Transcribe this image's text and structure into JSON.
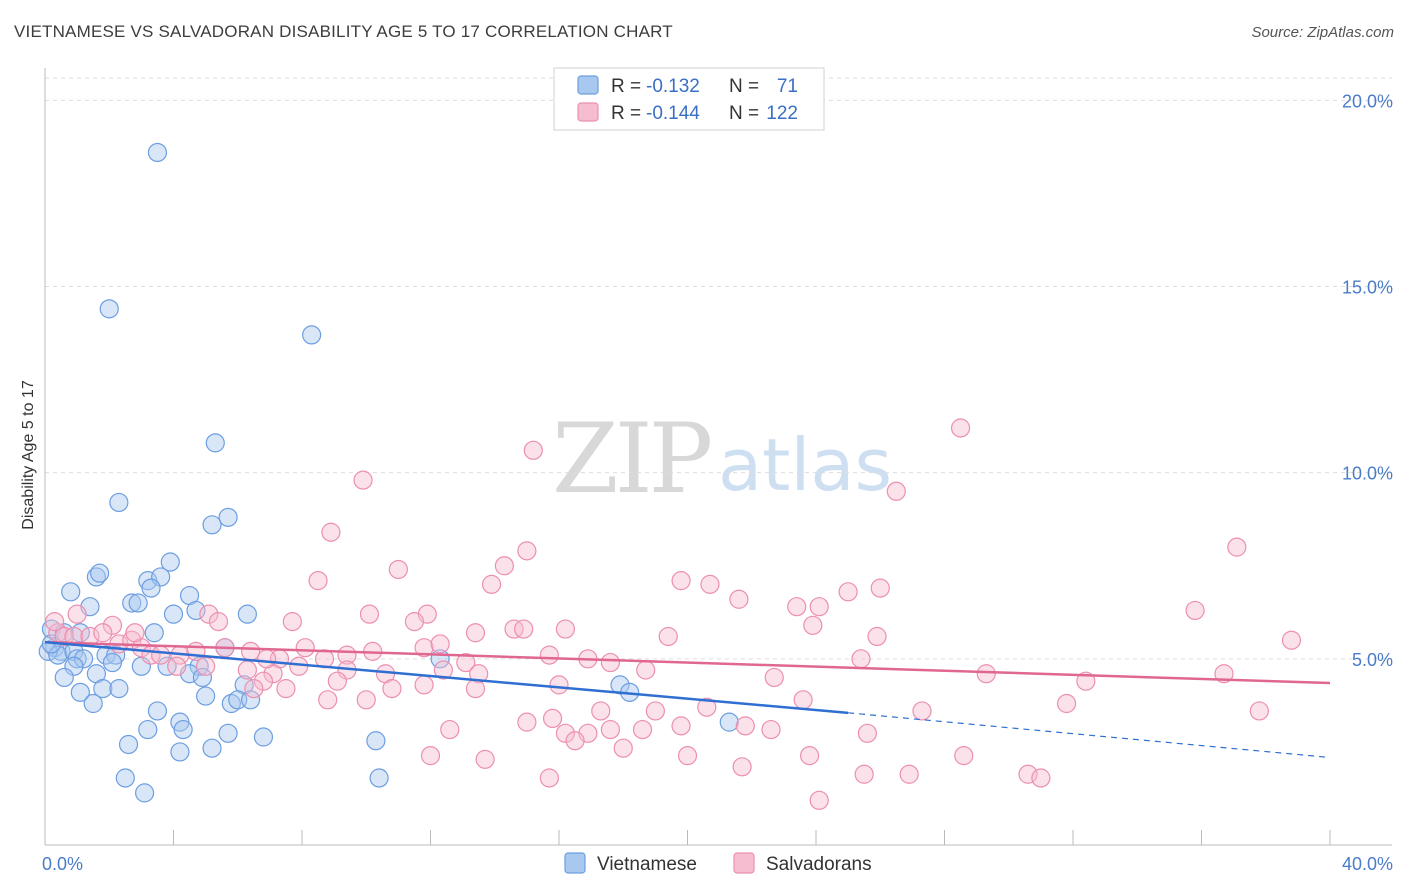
{
  "title": "VIETNAMESE VS SALVADORAN DISABILITY AGE 5 TO 17 CORRELATION CHART",
  "source": "Source: ZipAtlas.com",
  "watermark": {
    "zip": "ZIP",
    "atlas": "atlas"
  },
  "legend": {
    "rows": [
      {
        "r_label": "R =",
        "r_value": "-0.132",
        "n_label": "N =",
        "n_value": "71",
        "color": "#a9c8ef",
        "stroke": "#6c9ee0"
      },
      {
        "r_label": "R =",
        "r_value": "-0.144",
        "n_label": "N =",
        "n_value": "122",
        "color": "#f6bdd0",
        "stroke": "#ec8fb0"
      }
    ]
  },
  "colors": {
    "blue_fill": "#a9c8ef",
    "blue_stroke": "#6c9ee0",
    "blue_line": "#2f6fd1",
    "pink_fill": "#f6bdd0",
    "pink_stroke": "#ec8fb0",
    "pink_line": "#e06791",
    "grid": "#dddddd",
    "tick": "#4a7cc9"
  },
  "chart_data": {
    "type": "scatter",
    "title": "VIETNAMESE VS SALVADORAN DISABILITY AGE 5 TO 17 CORRELATION CHART",
    "xlabel": "",
    "ylabel": "Disability Age 5 to 17",
    "xlim": [
      0,
      40
    ],
    "ylim": [
      0,
      20.6
    ],
    "x_tick_labels": [
      "0.0%",
      "40.0%"
    ],
    "y_ticks": [
      5,
      10,
      15,
      20
    ],
    "y_tick_labels": [
      "5.0%",
      "10.0%",
      "15.0%",
      "20.0%"
    ],
    "series": [
      {
        "name": "Vietnamese",
        "r": -0.132,
        "n": 71,
        "trend": {
          "x0": 0,
          "y0": 5.45,
          "x1": 25.0,
          "y1": 3.55,
          "dash_x1": 40.0,
          "dash_y1": 2.35
        },
        "points": [
          [
            3.5,
            18.6
          ],
          [
            2.0,
            14.4
          ],
          [
            8.3,
            13.7
          ],
          [
            5.3,
            10.8
          ],
          [
            2.3,
            9.2
          ],
          [
            5.7,
            8.8
          ],
          [
            5.2,
            8.6
          ],
          [
            3.9,
            7.6
          ],
          [
            1.6,
            7.2
          ],
          [
            3.2,
            7.1
          ],
          [
            3.6,
            7.2
          ],
          [
            0.8,
            6.8
          ],
          [
            1.7,
            7.3
          ],
          [
            3.3,
            6.9
          ],
          [
            4.5,
            6.7
          ],
          [
            2.7,
            6.5
          ],
          [
            2.9,
            6.5
          ],
          [
            1.4,
            6.4
          ],
          [
            4.0,
            6.2
          ],
          [
            4.7,
            6.3
          ],
          [
            6.3,
            6.2
          ],
          [
            0.2,
            5.8
          ],
          [
            0.6,
            5.7
          ],
          [
            1.1,
            5.7
          ],
          [
            0.3,
            5.3
          ],
          [
            0.5,
            5.2
          ],
          [
            3.4,
            5.7
          ],
          [
            5.6,
            5.3
          ],
          [
            0.1,
            5.2
          ],
          [
            0.4,
            5.1
          ],
          [
            0.9,
            5.2
          ],
          [
            1.0,
            5.0
          ],
          [
            1.2,
            5.0
          ],
          [
            1.9,
            5.1
          ],
          [
            2.2,
            5.1
          ],
          [
            2.1,
            4.9
          ],
          [
            0.9,
            4.8
          ],
          [
            3.0,
            4.8
          ],
          [
            3.8,
            4.8
          ],
          [
            4.8,
            4.8
          ],
          [
            1.6,
            4.6
          ],
          [
            0.6,
            4.5
          ],
          [
            4.5,
            4.6
          ],
          [
            4.9,
            4.5
          ],
          [
            1.8,
            4.2
          ],
          [
            2.3,
            4.2
          ],
          [
            6.2,
            4.3
          ],
          [
            1.1,
            4.1
          ],
          [
            5.0,
            4.0
          ],
          [
            1.5,
            3.8
          ],
          [
            5.8,
            3.8
          ],
          [
            6.0,
            3.9
          ],
          [
            6.4,
            3.9
          ],
          [
            3.5,
            3.6
          ],
          [
            4.2,
            3.3
          ],
          [
            4.3,
            3.1
          ],
          [
            3.2,
            3.1
          ],
          [
            5.7,
            3.0
          ],
          [
            6.8,
            2.9
          ],
          [
            2.6,
            2.7
          ],
          [
            5.2,
            2.6
          ],
          [
            4.2,
            2.5
          ],
          [
            10.3,
            2.8
          ],
          [
            2.5,
            1.8
          ],
          [
            10.4,
            1.8
          ],
          [
            3.1,
            1.4
          ],
          [
            12.3,
            5.0
          ],
          [
            17.9,
            4.3
          ],
          [
            18.2,
            4.1
          ],
          [
            21.3,
            3.3
          ],
          [
            0.2,
            5.4
          ]
        ]
      },
      {
        "name": "Salvadorans",
        "r": -0.144,
        "n": 122,
        "trend": {
          "x0": 0,
          "y0": 5.45,
          "x1": 40.0,
          "y1": 4.35
        },
        "points": [
          [
            28.5,
            11.2
          ],
          [
            15.2,
            10.6
          ],
          [
            9.9,
            9.8
          ],
          [
            26.5,
            9.5
          ],
          [
            8.9,
            8.4
          ],
          [
            15.0,
            7.9
          ],
          [
            37.1,
            8.0
          ],
          [
            11.0,
            7.4
          ],
          [
            14.3,
            7.5
          ],
          [
            8.5,
            7.1
          ],
          [
            13.9,
            7.0
          ],
          [
            19.8,
            7.1
          ],
          [
            20.7,
            7.0
          ],
          [
            25.0,
            6.8
          ],
          [
            26.0,
            6.9
          ],
          [
            21.6,
            6.6
          ],
          [
            23.4,
            6.4
          ],
          [
            24.1,
            6.4
          ],
          [
            35.8,
            6.3
          ],
          [
            1.0,
            6.2
          ],
          [
            2.1,
            5.9
          ],
          [
            10.1,
            6.2
          ],
          [
            11.9,
            6.2
          ],
          [
            5.1,
            6.2
          ],
          [
            5.4,
            6.0
          ],
          [
            7.7,
            6.0
          ],
          [
            11.5,
            6.0
          ],
          [
            13.4,
            5.7
          ],
          [
            14.6,
            5.8
          ],
          [
            14.9,
            5.8
          ],
          [
            16.2,
            5.8
          ],
          [
            23.9,
            5.9
          ],
          [
            19.4,
            5.6
          ],
          [
            25.9,
            5.6
          ],
          [
            38.8,
            5.5
          ],
          [
            0.4,
            5.7
          ],
          [
            0.6,
            5.6
          ],
          [
            0.9,
            5.6
          ],
          [
            1.4,
            5.6
          ],
          [
            1.8,
            5.7
          ],
          [
            2.3,
            5.4
          ],
          [
            2.7,
            5.5
          ],
          [
            3.0,
            5.3
          ],
          [
            3.3,
            5.1
          ],
          [
            3.6,
            5.1
          ],
          [
            4.2,
            5.1
          ],
          [
            4.7,
            5.2
          ],
          [
            5.6,
            5.3
          ],
          [
            6.4,
            5.2
          ],
          [
            7.3,
            5.0
          ],
          [
            8.1,
            5.3
          ],
          [
            8.7,
            5.0
          ],
          [
            9.4,
            5.1
          ],
          [
            10.2,
            5.2
          ],
          [
            11.8,
            5.3
          ],
          [
            12.3,
            5.4
          ],
          [
            13.1,
            4.9
          ],
          [
            15.7,
            5.1
          ],
          [
            16.9,
            5.0
          ],
          [
            17.6,
            4.9
          ],
          [
            25.4,
            5.0
          ],
          [
            4.1,
            4.8
          ],
          [
            5.0,
            4.8
          ],
          [
            6.3,
            4.7
          ],
          [
            7.1,
            4.6
          ],
          [
            7.9,
            4.8
          ],
          [
            9.4,
            4.7
          ],
          [
            10.6,
            4.6
          ],
          [
            12.4,
            4.7
          ],
          [
            13.5,
            4.6
          ],
          [
            18.7,
            4.7
          ],
          [
            29.3,
            4.6
          ],
          [
            36.7,
            4.6
          ],
          [
            6.8,
            4.4
          ],
          [
            11.8,
            4.3
          ],
          [
            16.0,
            4.3
          ],
          [
            22.7,
            4.5
          ],
          [
            6.5,
            4.2
          ],
          [
            7.5,
            4.2
          ],
          [
            10.8,
            4.2
          ],
          [
            13.4,
            4.2
          ],
          [
            32.4,
            4.4
          ],
          [
            8.8,
            3.9
          ],
          [
            10.0,
            3.9
          ],
          [
            23.6,
            3.9
          ],
          [
            31.8,
            3.8
          ],
          [
            17.3,
            3.6
          ],
          [
            19.0,
            3.6
          ],
          [
            20.6,
            3.7
          ],
          [
            27.3,
            3.6
          ],
          [
            37.8,
            3.6
          ],
          [
            15.0,
            3.3
          ],
          [
            15.8,
            3.4
          ],
          [
            19.8,
            3.2
          ],
          [
            21.8,
            3.2
          ],
          [
            22.6,
            3.1
          ],
          [
            12.6,
            3.1
          ],
          [
            16.2,
            3.0
          ],
          [
            16.9,
            3.0
          ],
          [
            17.6,
            3.1
          ],
          [
            18.6,
            3.1
          ],
          [
            25.6,
            3.0
          ],
          [
            16.5,
            2.8
          ],
          [
            18.0,
            2.6
          ],
          [
            20.0,
            2.4
          ],
          [
            23.8,
            2.4
          ],
          [
            12.0,
            2.4
          ],
          [
            28.6,
            2.4
          ],
          [
            21.7,
            2.1
          ],
          [
            15.7,
            1.8
          ],
          [
            25.5,
            1.9
          ],
          [
            26.9,
            1.9
          ],
          [
            30.6,
            1.9
          ],
          [
            31.0,
            1.8
          ],
          [
            24.1,
            1.2
          ],
          [
            13.7,
            2.3
          ],
          [
            6.9,
            5.0
          ],
          [
            9.1,
            4.4
          ],
          [
            2.8,
            5.7
          ],
          [
            0.3,
            6.0
          ]
        ]
      }
    ]
  },
  "bottom_legend": [
    {
      "label": "Vietnamese",
      "color": "#a9c8ef",
      "stroke": "#6c9ee0"
    },
    {
      "label": "Salvadorans",
      "color": "#f6bdd0",
      "stroke": "#ec8fb0"
    }
  ]
}
